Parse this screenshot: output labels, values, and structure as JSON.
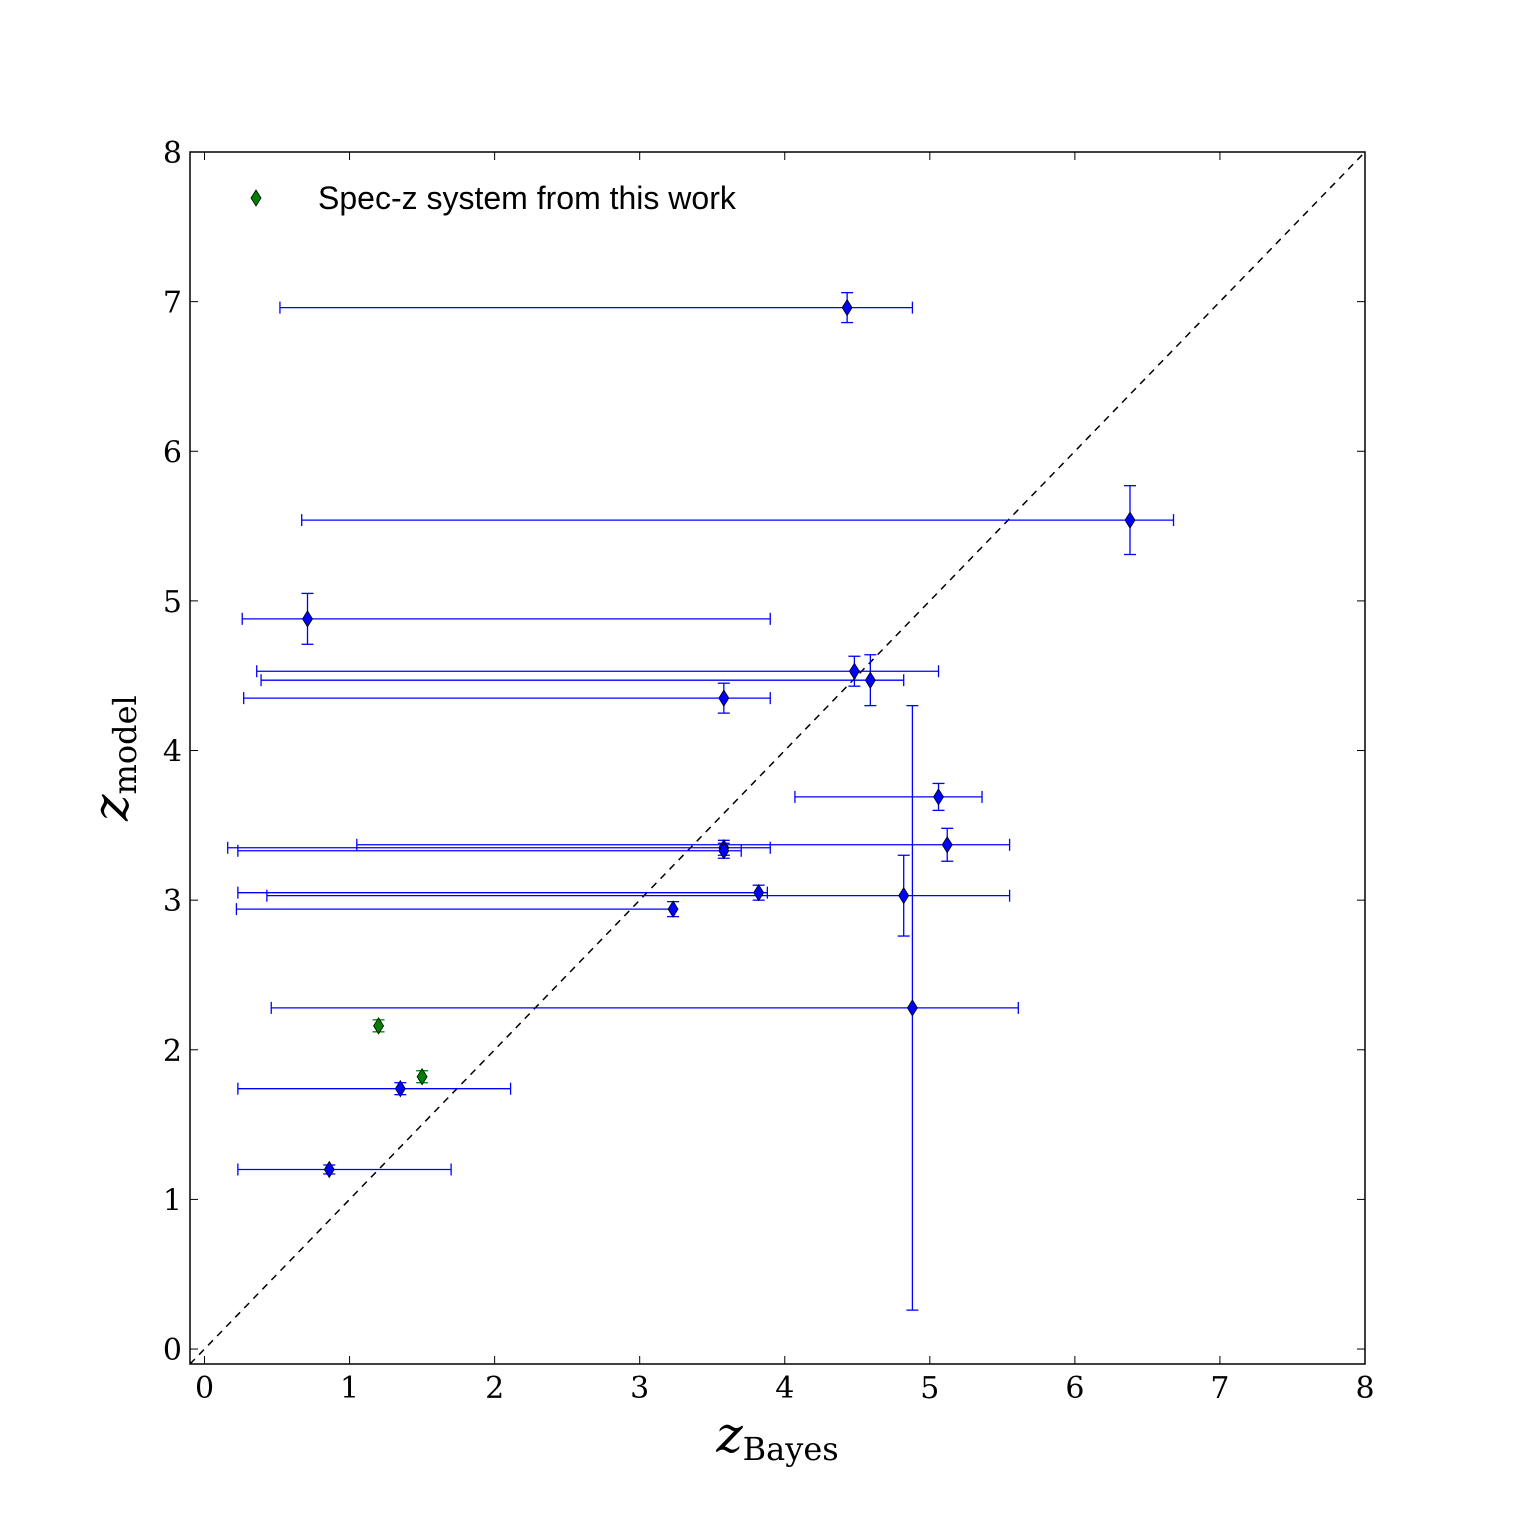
{
  "chart_data": {
    "type": "scatter",
    "xlabel": {
      "main": "z",
      "sub": "Bayes"
    },
    "ylabel": {
      "main": "z",
      "sub": "model"
    },
    "xlim": [
      -0.1,
      8
    ],
    "ylim": [
      -0.1,
      8
    ],
    "xticks": [
      0,
      1,
      2,
      3,
      4,
      5,
      6,
      7,
      8
    ],
    "yticks": [
      0,
      1,
      2,
      3,
      4,
      5,
      6,
      7,
      8
    ],
    "reference_line": {
      "style": "dashed",
      "x": [
        -0.1,
        8
      ],
      "y": [
        -0.1,
        8
      ]
    },
    "legend": {
      "position": "top-left",
      "entries": [
        {
          "label": "Spec-z system from this work",
          "series": "spec"
        }
      ]
    },
    "colors": {
      "main": "#0000ff",
      "spec": "#008000",
      "axes": "#000000"
    },
    "series": [
      {
        "key": "main",
        "points": [
          {
            "x": 4.43,
            "y": 6.96,
            "xmin": 0.52,
            "xmax": 4.88,
            "ymin": 6.86,
            "ymax": 7.06
          },
          {
            "x": 6.38,
            "y": 5.54,
            "xmin": 0.67,
            "xmax": 6.68,
            "ymin": 5.31,
            "ymax": 5.77
          },
          {
            "x": 0.71,
            "y": 4.88,
            "xmin": 0.26,
            "xmax": 3.9,
            "ymin": 4.71,
            "ymax": 5.05
          },
          {
            "x": 4.48,
            "y": 4.53,
            "xmin": 0.36,
            "xmax": 5.06,
            "ymin": 4.43,
            "ymax": 4.63
          },
          {
            "x": 4.59,
            "y": 4.47,
            "xmin": 0.39,
            "xmax": 4.82,
            "ymin": 4.3,
            "ymax": 4.64
          },
          {
            "x": 3.58,
            "y": 4.35,
            "xmin": 0.27,
            "xmax": 3.9,
            "ymin": 4.25,
            "ymax": 4.45
          },
          {
            "x": 5.06,
            "y": 3.69,
            "xmin": 4.07,
            "xmax": 5.36,
            "ymin": 3.6,
            "ymax": 3.78
          },
          {
            "x": 5.12,
            "y": 3.37,
            "xmin": 1.05,
            "xmax": 5.55,
            "ymin": 3.26,
            "ymax": 3.48
          },
          {
            "x": 3.58,
            "y": 3.35,
            "xmin": 0.16,
            "xmax": 3.9,
            "ymin": 3.3,
            "ymax": 3.4
          },
          {
            "x": 3.58,
            "y": 3.33,
            "xmin": 0.23,
            "xmax": 3.7,
            "ymin": 3.28,
            "ymax": 3.38
          },
          {
            "x": 3.82,
            "y": 3.05,
            "xmin": 0.23,
            "xmax": 3.88,
            "ymin": 3.0,
            "ymax": 3.1
          },
          {
            "x": 4.82,
            "y": 3.03,
            "xmin": 0.43,
            "xmax": 5.55,
            "ymin": 2.76,
            "ymax": 3.3
          },
          {
            "x": 3.23,
            "y": 2.94,
            "xmin": 0.22,
            "xmax": 3.24,
            "ymin": 2.89,
            "ymax": 2.99
          },
          {
            "x": 4.88,
            "y": 2.28,
            "xmin": 0.46,
            "xmax": 5.61,
            "ymin": 0.26,
            "ymax": 4.3
          },
          {
            "x": 1.35,
            "y": 1.74,
            "xmin": 0.23,
            "xmax": 2.11,
            "ymin": 1.7,
            "ymax": 1.78
          },
          {
            "x": 0.86,
            "y": 1.2,
            "xmin": 0.23,
            "xmax": 1.7,
            "ymin": 1.17,
            "ymax": 1.23
          }
        ]
      },
      {
        "key": "spec",
        "name": "Spec-z system from this work",
        "points": [
          {
            "x": 1.2,
            "y": 2.16,
            "ymin": 2.12,
            "ymax": 2.2
          },
          {
            "x": 1.5,
            "y": 1.82,
            "ymin": 1.78,
            "ymax": 1.86
          }
        ]
      }
    ]
  }
}
